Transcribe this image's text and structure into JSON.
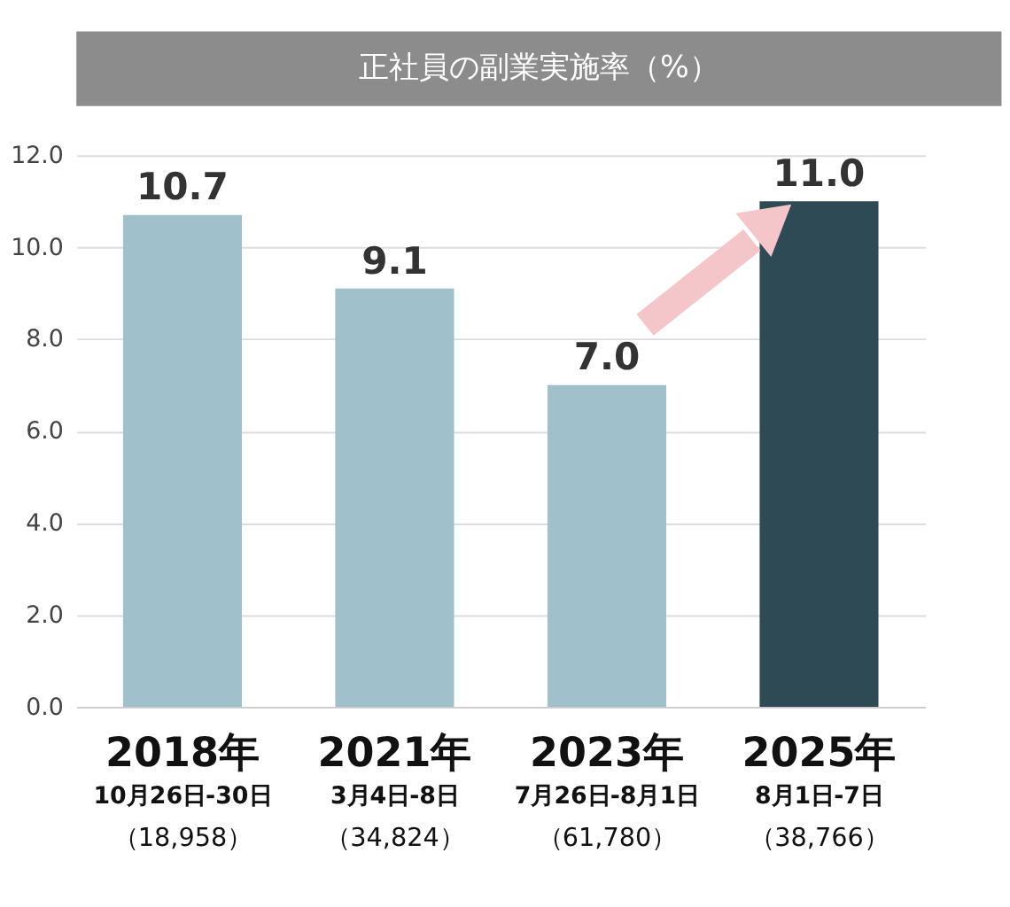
{
  "chart_data": {
    "type": "bar",
    "title": "正社員の副業実施率（%）",
    "categories": [
      "2018年",
      "2021年",
      "2023年",
      "2025年"
    ],
    "annotations": [
      "10月26日-30日",
      "（18,958）",
      "3月4日-8日",
      "（34,824）",
      "7月26日-8月1日",
      "（61,780）",
      "8月1日-7日",
      "（38,766）"
    ],
    "values": [
      10.7,
      9.1,
      7.0,
      11.0
    ],
    "value_labels": [
      "10.7",
      "9.1",
      "7.0",
      "11.0"
    ],
    "colors": [
      "#a0c0cc",
      "#a0c0cc",
      "#a0c0cc",
      "#2e4a55"
    ],
    "ylim": [
      0,
      12
    ],
    "yticks": [
      {
        "value": 0,
        "label": "0.0"
      },
      {
        "value": 2,
        "label": "2.0"
      },
      {
        "value": 4,
        "label": "4.0"
      },
      {
        "value": 6,
        "label": "6.0"
      },
      {
        "value": 8,
        "label": "8.0"
      },
      {
        "value": 10,
        "label": "10.0"
      },
      {
        "value": 12,
        "label": "12.0"
      }
    ],
    "grid": "y"
  }
}
